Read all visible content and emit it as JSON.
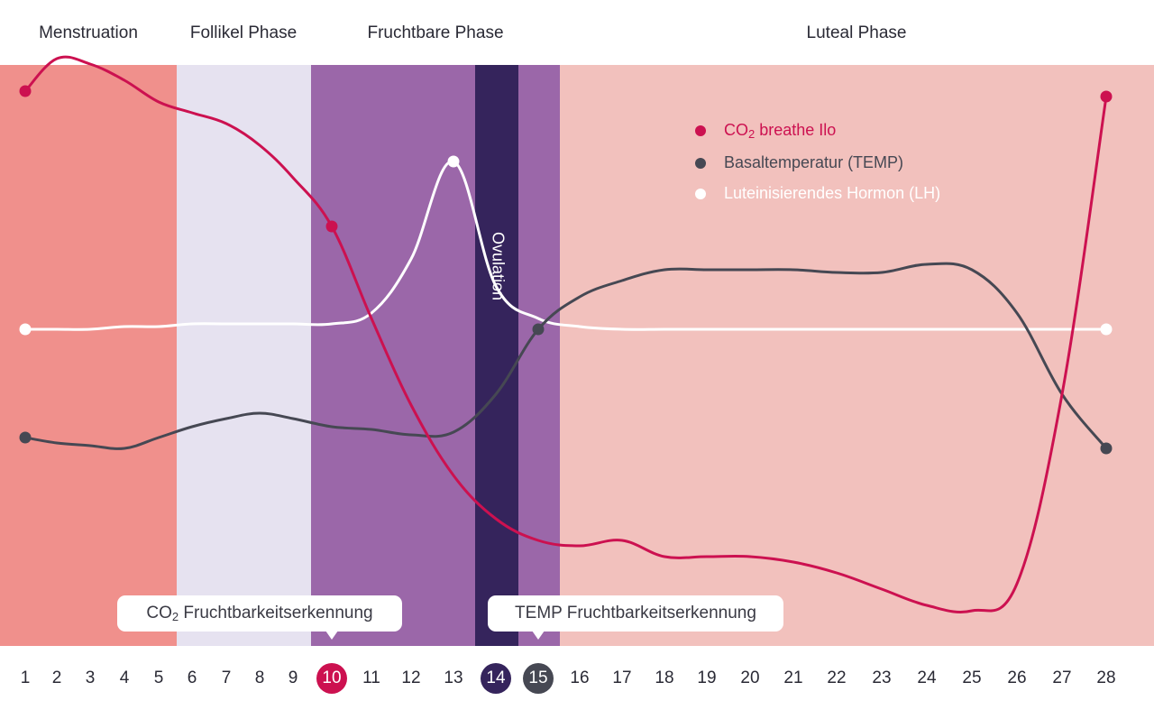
{
  "chart_data": {
    "type": "line",
    "phases": [
      {
        "label": "Menstruation",
        "days": [
          1,
          5
        ],
        "color": "#f0908c"
      },
      {
        "label": "Follikel Phase",
        "days": [
          6,
          9
        ],
        "color": "#e6e2f0"
      },
      {
        "label": "Fruchtbare Phase",
        "days": [
          10,
          15
        ],
        "color": "#9b67a9"
      },
      {
        "label": "Luteal Phase",
        "days": [
          16,
          28
        ],
        "color": "#f2c1bd"
      }
    ],
    "ovulation": {
      "label": "Ovulation",
      "day": 14,
      "color": "#35245c"
    },
    "x": [
      1,
      2,
      3,
      4,
      5,
      6,
      7,
      8,
      9,
      10,
      11,
      12,
      13,
      14,
      15,
      16,
      17,
      18,
      19,
      20,
      21,
      22,
      23,
      24,
      25,
      26,
      27,
      28
    ],
    "series": [
      {
        "name_parts": [
          "CO",
          "2",
          " breathe Ilo"
        ],
        "color": "#cc1150",
        "values": [
          86,
          92,
          91,
          88,
          84,
          82,
          80,
          76,
          70,
          61,
          44,
          28,
          15,
          7,
          3,
          2,
          3,
          0,
          0,
          0,
          -1,
          -3,
          -6,
          -9,
          -10,
          -5,
          30,
          85
        ],
        "markers": [
          1,
          10,
          28
        ]
      },
      {
        "name": "Basaltemperatur (TEMP)",
        "color": "#464853",
        "values": [
          22,
          21,
          20.5,
          20,
          22,
          24,
          25.5,
          26.5,
          25.5,
          24,
          23.5,
          22.5,
          23,
          30,
          42,
          48,
          51,
          53,
          53,
          53,
          53,
          52.5,
          52.5,
          54,
          53,
          45,
          30,
          20
        ],
        "markers": [
          1,
          15,
          28
        ]
      },
      {
        "name": "Luteinisierendes Hormon (LH)",
        "color": "#ffffff",
        "values": [
          42,
          42,
          42,
          42.5,
          42.5,
          43,
          43,
          43,
          43,
          43,
          45,
          55,
          73,
          50,
          44,
          42.5,
          42,
          42,
          42,
          42,
          42,
          42,
          42,
          42,
          42,
          42,
          42,
          42
        ],
        "markers": [
          1,
          13,
          28
        ]
      }
    ],
    "highlighted_days": [
      {
        "day": 10,
        "color": "#cc1150"
      },
      {
        "day": 14,
        "color": "#35245c"
      },
      {
        "day": 15,
        "color": "#464853"
      }
    ],
    "callouts": [
      {
        "parts": [
          "CO",
          "2",
          " Fruchtbarkeitserkennung"
        ],
        "day": 10
      },
      {
        "parts": [
          "",
          "",
          "TEMP Fruchtbarkeitserkennung"
        ],
        "day": 15
      }
    ],
    "legend_position": "top-right",
    "grid": false
  }
}
